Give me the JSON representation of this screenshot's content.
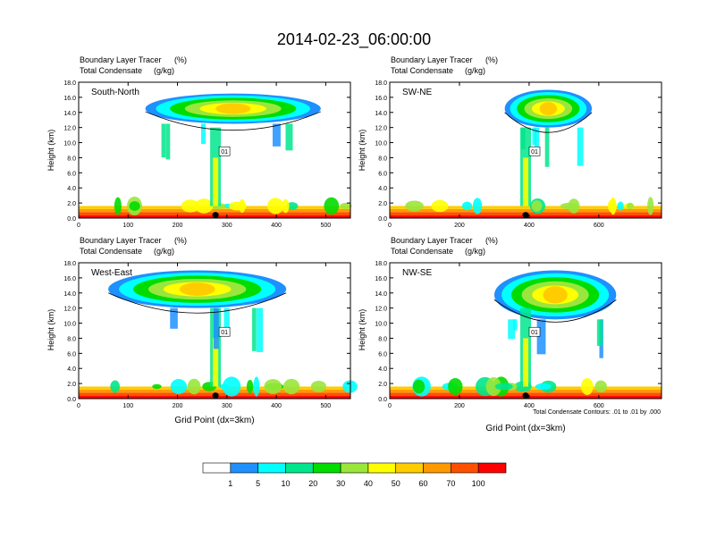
{
  "title": "2014-02-23_06:00:00",
  "panel_headers": {
    "tracer_label": "Boundary Layer Tracer",
    "tracer_units": "(%)",
    "condensate_label": "Total Condensate",
    "condensate_units": "(g/kg)"
  },
  "contour_note": "Total Condensate Contours: .01 to .01 by .000",
  "contour_label": "01",
  "colorbar": {
    "levels": [
      "1",
      "5",
      "10",
      "20",
      "30",
      "40",
      "50",
      "60",
      "70",
      "100"
    ],
    "colors": [
      "#ffffff",
      "#1e90ff",
      "#00ffff",
      "#00e68c",
      "#00dc00",
      "#9ae63c",
      "#ffff00",
      "#ffcc00",
      "#ff9900",
      "#ff5000",
      "#ff0000"
    ]
  },
  "chart_data": [
    {
      "type": "heatmap",
      "name": "South-North",
      "ylabel": "Height (km)",
      "xlabel": "",
      "xlim": [
        0,
        550
      ],
      "ylim": [
        0,
        18
      ],
      "xticks": [
        "0",
        "100",
        "200",
        "300",
        "400",
        "500"
      ],
      "xtick_values": [
        0,
        100,
        200,
        300,
        400,
        500
      ],
      "yticks": [
        "0.0",
        "2.0",
        "4.0",
        "6.0",
        "8.0",
        "10.0",
        "12.0",
        "14.0",
        "16.0",
        "18.0"
      ],
      "marker_x": 277,
      "anvil": {
        "x": [
          135,
          490
        ],
        "z": [
          12.5,
          16.5
        ]
      },
      "column_x": 277
    },
    {
      "type": "heatmap",
      "name": "SW-NE",
      "ylabel": "Height (km)",
      "xlabel": "",
      "xlim": [
        0,
        780
      ],
      "ylim": [
        0,
        18
      ],
      "xticks": [
        "0",
        "200",
        "400",
        "600"
      ],
      "xtick_values": [
        0,
        200,
        400,
        600
      ],
      "yticks": [
        "0.0",
        "2.0",
        "4.0",
        "6.0",
        "8.0",
        "10.0",
        "12.0",
        "14.0",
        "16.0",
        "18.0"
      ],
      "marker_x": 390,
      "anvil": {
        "x": [
          330,
          580
        ],
        "z": [
          12.0,
          17.0
        ]
      },
      "column_x": 390
    },
    {
      "type": "heatmap",
      "name": "West-East",
      "ylabel": "Height (km)",
      "xlabel": "Grid Point (dx=3km)",
      "xlim": [
        0,
        550
      ],
      "ylim": [
        0,
        18
      ],
      "xticks": [
        "0",
        "100",
        "200",
        "300",
        "400",
        "500"
      ],
      "xtick_values": [
        0,
        100,
        200,
        300,
        400,
        500
      ],
      "yticks": [
        "0.0",
        "2.0",
        "4.0",
        "6.0",
        "8.0",
        "10.0",
        "12.0",
        "14.0",
        "16.0",
        "18.0"
      ],
      "marker_x": 277,
      "anvil": {
        "x": [
          60,
          420
        ],
        "z": [
          12.0,
          17.0
        ]
      },
      "column_x": 277
    },
    {
      "type": "heatmap",
      "name": "NW-SE",
      "ylabel": "Height (km)",
      "xlabel": "Grid Point (dx=3km)",
      "xlim": [
        0,
        780
      ],
      "ylim": [
        0,
        18
      ],
      "xticks": [
        "0",
        "200",
        "400",
        "600"
      ],
      "xtick_values": [
        0,
        200,
        400,
        600
      ],
      "yticks": [
        "0.0",
        "2.0",
        "4.0",
        "6.0",
        "8.0",
        "10.0",
        "12.0",
        "14.0",
        "16.0",
        "18.0"
      ],
      "marker_x": 390,
      "anvil": {
        "x": [
          300,
          650
        ],
        "z": [
          10.5,
          17.0
        ]
      },
      "column_x": 390
    }
  ]
}
